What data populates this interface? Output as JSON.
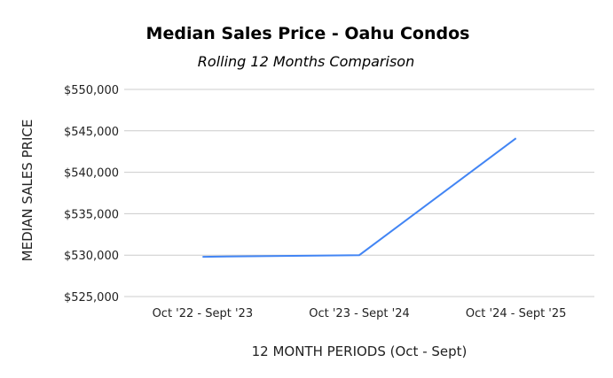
{
  "chart_data": {
    "type": "line",
    "title": "Median Sales Price  - Oahu Condos",
    "subtitle": "Rolling 12 Months Comparison",
    "xlabel": "12 MONTH PERIODS (Oct - Sept)",
    "ylabel": "MEDIAN SALES PRICE",
    "categories": [
      "Oct '22 - Sept '23",
      "Oct '23 - Sept '24",
      "Oct '24 - Sept '25"
    ],
    "series": [
      {
        "name": "Median Sales Price",
        "values": [
          529800,
          530000,
          544100
        ],
        "color": "#4285f4"
      }
    ],
    "ylim": [
      525000,
      550000
    ],
    "yticks": [
      525000,
      530000,
      535000,
      540000,
      545000,
      550000
    ],
    "ytick_labels": [
      "$525,000",
      "$530,000",
      "$535,000",
      "$540,000",
      "$545,000",
      "$550,000"
    ],
    "grid": true,
    "legend": "none"
  }
}
